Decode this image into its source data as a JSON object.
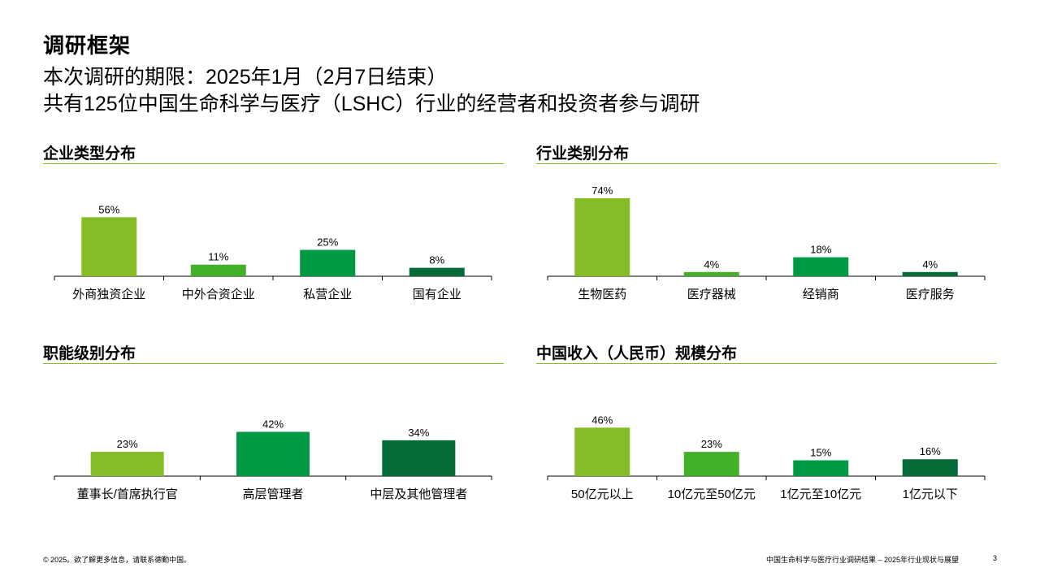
{
  "title": "调研框架",
  "subtitle_line1": "本次调研的期限：2025年1月（2月7日结束）",
  "subtitle_line2": "共有125位中国生命科学与医疗（LSHC）行业的经营者和投资者参与调研",
  "colors": {
    "green_light": "#86bc25",
    "green_mid": "#43b02a",
    "green_bright": "#009a44",
    "green_dark": "#046a38",
    "rule": "#86bc25"
  },
  "footer": {
    "left": "© 2025。欲了解更多信息，请联系德勤中国。",
    "right": "中国生命科学与医疗行业调研结果 – 2025年行业现状与展望",
    "page": "3"
  },
  "chart_data": [
    {
      "type": "bar",
      "title": "企业类型分布",
      "categories": [
        "外商独资企业",
        "中外合资企业",
        "私营企业",
        "国有企业"
      ],
      "values": [
        56,
        11,
        25,
        8
      ],
      "value_labels": [
        "56%",
        "11%",
        "25%",
        "8%"
      ],
      "ylim": [
        0,
        80
      ],
      "grid": false,
      "colors": [
        "#86bc25",
        "#43b02a",
        "#009a44",
        "#046a38"
      ]
    },
    {
      "type": "bar",
      "title": "行业类别分布",
      "categories": [
        "生物医药",
        "医疗器械",
        "经销商",
        "医疗服务"
      ],
      "values": [
        74,
        4,
        18,
        4
      ],
      "value_labels": [
        "74%",
        "4%",
        "18%",
        "4%"
      ],
      "ylim": [
        0,
        80
      ],
      "grid": false,
      "colors": [
        "#86bc25",
        "#43b02a",
        "#009a44",
        "#046a38"
      ]
    },
    {
      "type": "bar",
      "title": "职能级别分布",
      "categories": [
        "董事长/首席执行官",
        "高层管理者",
        "中层及其他管理者"
      ],
      "values": [
        23,
        42,
        34
      ],
      "value_labels": [
        "23%",
        "42%",
        "34%"
      ],
      "ylim": [
        0,
        80
      ],
      "grid": false,
      "colors": [
        "#86bc25",
        "#009a44",
        "#046a38"
      ]
    },
    {
      "type": "bar",
      "title": "中国收入（人民币）规模分布",
      "categories": [
        "50亿元以上",
        "10亿元至50亿元",
        "1亿元至10亿元",
        "1亿元以下"
      ],
      "values": [
        46,
        23,
        15,
        16
      ],
      "value_labels": [
        "46%",
        "23%",
        "15%",
        "16%"
      ],
      "ylim": [
        0,
        80
      ],
      "grid": false,
      "colors": [
        "#86bc25",
        "#43b02a",
        "#009a44",
        "#046a38"
      ]
    }
  ]
}
